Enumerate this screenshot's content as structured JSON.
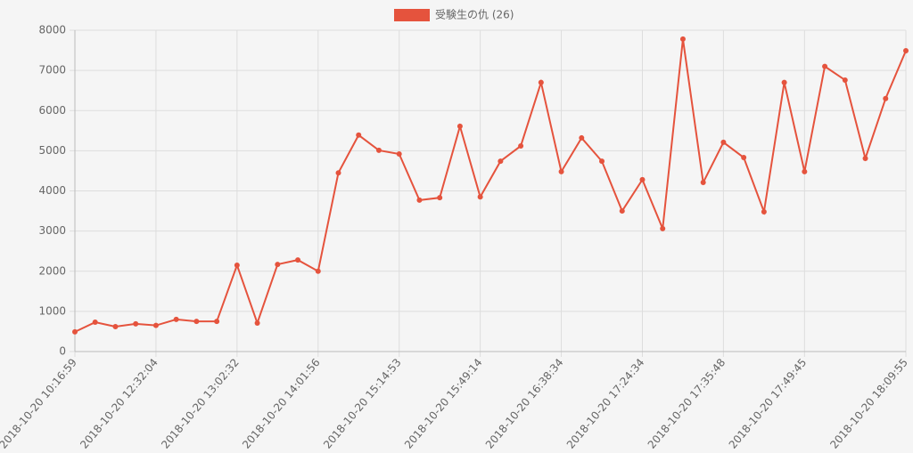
{
  "chart_data": {
    "type": "line",
    "categories": [
      "2018-10-20 10:16:59",
      null,
      null,
      null,
      "2018-10-20 12:32:04",
      null,
      null,
      null,
      "2018-10-20 13:02:32",
      null,
      null,
      null,
      "2018-10-20 14:01:56",
      null,
      null,
      null,
      "2018-10-20 15:14:53",
      null,
      null,
      null,
      "2018-10-20 15:49:14",
      null,
      null,
      null,
      "2018-10-20 16:38:34",
      null,
      null,
      null,
      "2018-10-20 17:24:34",
      null,
      null,
      null,
      "2018-10-20 17:35:48",
      null,
      null,
      null,
      "2018-10-20 17:49:45",
      null,
      null,
      null,
      null,
      "2018-10-20 18:09:55"
    ],
    "series": [
      {
        "name": "受験生の仇 (26)",
        "color": "#e5533d",
        "values": [
          490,
          730,
          620,
          690,
          650,
          800,
          750,
          750,
          2150,
          710,
          2170,
          2280,
          2000,
          4450,
          5390,
          5010,
          4920,
          3770,
          3830,
          5610,
          3850,
          4740,
          5120,
          6700,
          4480,
          5320,
          4740,
          3500,
          4280,
          3060,
          7780,
          4210,
          5210,
          4830,
          3480,
          6700,
          4480,
          7100,
          6760,
          4810,
          6300,
          7490
        ]
      }
    ],
    "ylim": [
      0,
      8000
    ],
    "yticks": [
      0,
      1000,
      2000,
      3000,
      4000,
      5000,
      6000,
      7000,
      8000
    ],
    "grid": true,
    "legend": "top"
  }
}
